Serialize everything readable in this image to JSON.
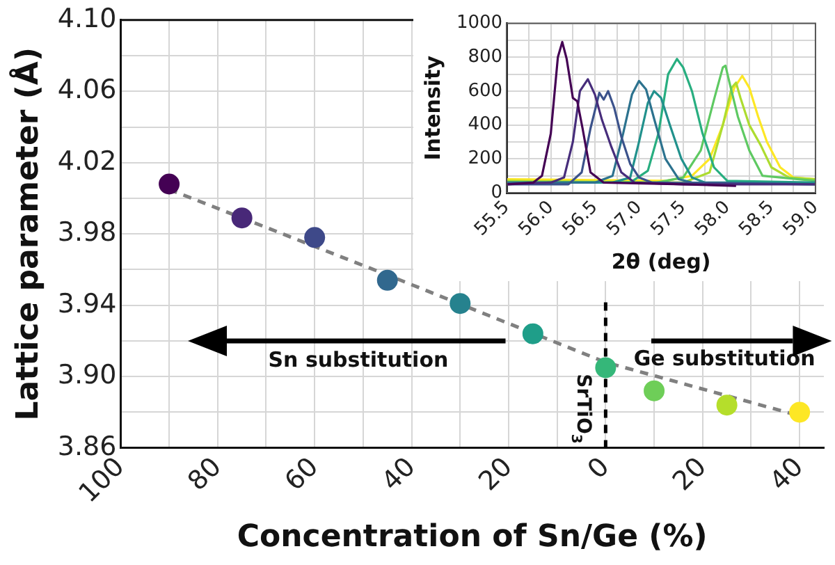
{
  "chart_data": [
    {
      "type": "scatter",
      "xlabel": "Concentration of Sn/Ge (%)",
      "ylabel": "Lattice parameter (Å)",
      "xlim": [
        -100,
        45
      ],
      "ylim": [
        3.86,
        4.1
      ],
      "xticks": [
        {
          "value": -100,
          "label": "100"
        },
        {
          "value": -90,
          "label": null
        },
        {
          "value": -80,
          "label": "80"
        },
        {
          "value": -70,
          "label": null
        },
        {
          "value": -60,
          "label": "60"
        },
        {
          "value": -50,
          "label": null
        },
        {
          "value": -40,
          "label": "40"
        },
        {
          "value": -30,
          "label": null
        },
        {
          "value": -20,
          "label": "20"
        },
        {
          "value": -10,
          "label": null
        },
        0,
        {
          "value": 10,
          "label": null
        },
        20,
        {
          "value": 30,
          "label": null
        },
        40
      ],
      "yticks": [
        {
          "value": 3.86,
          "label": "3.86"
        },
        {
          "value": 3.88,
          "label": null
        },
        {
          "value": 3.9,
          "label": "3.90"
        },
        {
          "value": 3.92,
          "label": null
        },
        {
          "value": 3.94,
          "label": "3.94"
        },
        {
          "value": 3.96,
          "label": null
        },
        {
          "value": 3.98,
          "label": "3.98"
        },
        {
          "value": 4.0,
          "label": null
        },
        {
          "value": 4.02,
          "label": "4.02"
        },
        {
          "value": 4.04,
          "label": null
        },
        {
          "value": 4.06,
          "label": "4.06"
        },
        {
          "value": 4.08,
          "label": null
        },
        {
          "value": 4.1,
          "label": "4.10"
        }
      ],
      "grid": true,
      "legend": false,
      "series": [
        {
          "type": "scatter",
          "marker": "circle",
          "x": [
            -90,
            -75,
            -60,
            -45,
            -30,
            -15,
            0,
            10,
            25,
            40
          ],
          "values": [
            4.008,
            3.989,
            3.978,
            3.954,
            3.941,
            3.924,
            3.905,
            3.892,
            3.884,
            3.88
          ],
          "colors": [
            "#440154",
            "#482878",
            "#3e4989",
            "#31688e",
            "#26828e",
            "#1f9e89",
            "#35b779",
            "#6ece58",
            "#b5de2b",
            "#fde725"
          ]
        },
        {
          "type": "line",
          "marker": "none",
          "line_style": "dashed",
          "color": "#808080",
          "x": [
            -90,
            -45,
            0,
            40
          ],
          "values": [
            4.005,
            3.957,
            3.908,
            3.878
          ]
        }
      ],
      "ref_lines": [
        {
          "axis": "x",
          "value": 0,
          "label": "SrTiO$_{3}$",
          "line_style": "dashed",
          "color": "#000000"
        }
      ],
      "annotations": [
        "Sn substitution",
        "Ge substitution"
      ]
    },
    {
      "type": "line",
      "xlabel": "2θ (deg)",
      "ylabel": "Intensity",
      "xlim": [
        55.5,
        59.0
      ],
      "ylim": [
        0,
        1000
      ],
      "xticks": [
        55.5,
        {
          "value": 55.75,
          "label": null
        },
        {
          "value": 56.0,
          "label": "56.0"
        },
        {
          "value": 56.25,
          "label": null
        },
        56.5,
        {
          "value": 56.75,
          "label": null
        },
        {
          "value": 57.0,
          "label": "57.0"
        },
        {
          "value": 57.25,
          "label": null
        },
        57.5,
        {
          "value": 57.75,
          "label": null
        },
        {
          "value": 58.0,
          "label": "58.0"
        },
        {
          "value": 58.25,
          "label": null
        },
        58.5,
        {
          "value": 58.75,
          "label": null
        },
        {
          "value": 59.0,
          "label": "59.0"
        }
      ],
      "yticks": [
        0,
        {
          "value": 100,
          "label": null
        },
        200,
        {
          "value": 300,
          "label": null
        },
        400,
        {
          "value": 500,
          "label": null
        },
        600,
        {
          "value": 700,
          "label": null
        },
        800,
        {
          "value": 900,
          "label": null
        },
        1000
      ],
      "grid": true,
      "legend": false,
      "marker": "none",
      "series": [
        {
          "color": "#440154",
          "x": [
            55.5,
            55.8,
            55.9,
            56.0,
            56.08,
            56.13,
            56.18,
            56.25,
            56.3,
            56.36,
            56.45,
            56.6,
            57.5,
            58.1
          ],
          "values": [
            50,
            60,
            100,
            350,
            800,
            890,
            790,
            560,
            540,
            380,
            120,
            60,
            50,
            40
          ]
        },
        {
          "color": "#472d7b",
          "x": [
            55.5,
            56.0,
            56.15,
            56.25,
            56.33,
            56.42,
            56.5,
            56.58,
            56.68,
            56.8,
            56.95,
            57.5,
            59.0
          ],
          "values": [
            50,
            60,
            90,
            300,
            600,
            670,
            580,
            430,
            280,
            120,
            60,
            50,
            50
          ]
        },
        {
          "color": "#3b528b",
          "x": [
            55.5,
            56.2,
            56.35,
            56.45,
            56.55,
            56.6,
            56.65,
            56.72,
            56.8,
            56.9,
            57.0,
            57.15,
            59.0
          ],
          "values": [
            50,
            50,
            120,
            380,
            590,
            550,
            600,
            500,
            330,
            170,
            90,
            60,
            50
          ]
        },
        {
          "color": "#2c728e",
          "x": [
            55.5,
            56.5,
            56.7,
            56.82,
            56.92,
            57.0,
            57.08,
            57.18,
            57.3,
            57.45,
            57.6,
            59.0
          ],
          "values": [
            60,
            60,
            100,
            350,
            580,
            660,
            610,
            420,
            200,
            80,
            60,
            50
          ]
        },
        {
          "color": "#21918c",
          "x": [
            55.5,
            56.7,
            56.9,
            57.0,
            57.1,
            57.17,
            57.25,
            57.35,
            57.48,
            57.6,
            57.75,
            59.0
          ],
          "values": [
            60,
            60,
            90,
            300,
            530,
            600,
            560,
            400,
            200,
            90,
            60,
            60
          ]
        },
        {
          "color": "#28ae80",
          "x": [
            55.5,
            56.9,
            57.1,
            57.22,
            57.33,
            57.43,
            57.5,
            57.6,
            57.72,
            57.85,
            58.0,
            59.0
          ],
          "values": [
            60,
            60,
            130,
            350,
            700,
            790,
            740,
            600,
            350,
            150,
            70,
            60
          ]
        },
        {
          "color": "#5ec962",
          "x": [
            55.5,
            57.2,
            57.5,
            57.7,
            57.85,
            57.95,
            57.98,
            58.03,
            58.12,
            58.25,
            58.4,
            59.0
          ],
          "values": [
            60,
            60,
            90,
            250,
            550,
            740,
            750,
            640,
            450,
            250,
            100,
            70
          ]
        },
        {
          "color": "#addc30",
          "x": [
            55.5,
            57.5,
            57.8,
            57.95,
            58.05,
            58.1,
            58.15,
            58.25,
            58.38,
            58.5,
            58.7,
            59.0
          ],
          "values": [
            70,
            60,
            120,
            400,
            620,
            650,
            560,
            400,
            280,
            150,
            90,
            80
          ]
        },
        {
          "color": "#fde725",
          "x": [
            55.5,
            57.3,
            57.6,
            57.8,
            57.95,
            58.08,
            58.17,
            58.25,
            58.35,
            58.45,
            58.6,
            58.75,
            59.0
          ],
          "values": [
            80,
            70,
            100,
            200,
            400,
            620,
            690,
            620,
            450,
            300,
            150,
            90,
            80
          ]
        }
      ]
    }
  ]
}
